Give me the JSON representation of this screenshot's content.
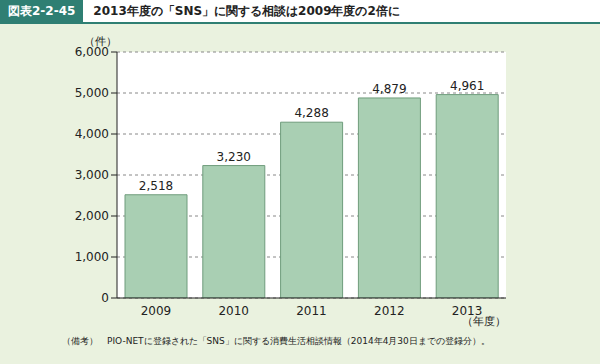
{
  "chart_data": {
    "type": "bar",
    "figure_label": "図表2-2-45",
    "title": "2013年度の「SNS」に関する相談は2009年度の2倍に",
    "y_label": "（件）",
    "x_label": "（年度）",
    "note": "（備考）　PIO-NETに登録された「SNS」に関する消費生活相談情報（2014年4月30日までの登録分）。",
    "categories": [
      "2009",
      "2010",
      "2011",
      "2012",
      "2013"
    ],
    "values": [
      2518,
      3230,
      4288,
      4879,
      4961
    ],
    "value_labels": [
      "2,518",
      "3,230",
      "4,288",
      "4,879",
      "4,961"
    ],
    "data_labels": true,
    "color": "#a9cfb3",
    "ylim": [
      0,
      6000
    ],
    "yticks": [
      0,
      {
        "value": 1000,
        "label": "1,000"
      },
      {
        "value": 2000,
        "label": "2,000"
      },
      {
        "value": 3000,
        "label": "3,000"
      },
      {
        "value": 4000,
        "label": "4,000"
      },
      {
        "value": 5000,
        "label": "5,000"
      },
      {
        "value": 6000,
        "label": "6,000"
      }
    ],
    "grid": true
  }
}
